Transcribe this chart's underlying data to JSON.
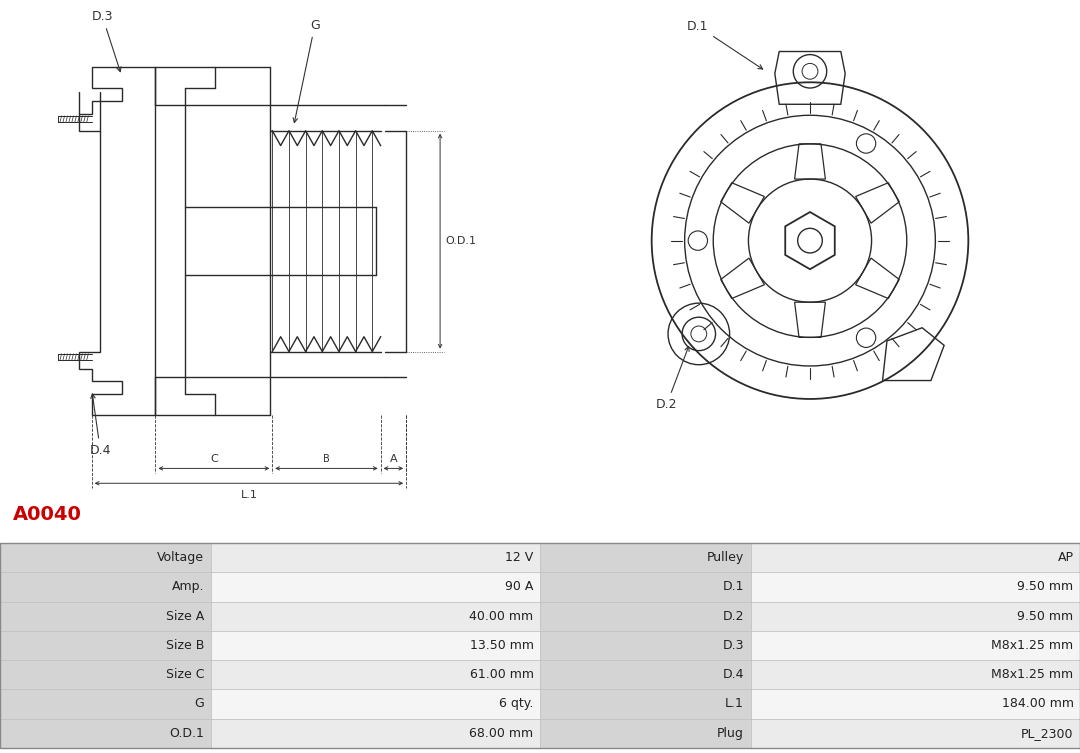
{
  "title": "A0040",
  "title_color": "#cc0000",
  "bg_color": "#ffffff",
  "table_rows": [
    [
      "Voltage",
      "12 V",
      "Pulley",
      "AP"
    ],
    [
      "Amp.",
      "90 A",
      "D.1",
      "9.50 mm"
    ],
    [
      "Size A",
      "40.00 mm",
      "D.2",
      "9.50 mm"
    ],
    [
      "Size B",
      "13.50 mm",
      "D.3",
      "M8x1.25 mm"
    ],
    [
      "Size C",
      "61.00 mm",
      "D.4",
      "M8x1.25 mm"
    ],
    [
      "G",
      "6 qty.",
      "L.1",
      "184.00 mm"
    ],
    [
      "O.D.1",
      "68.00 mm",
      "Plug",
      "PL_2300"
    ]
  ],
  "line_color": "#2a2a2a",
  "dim_color": "#333333",
  "font_size": 9,
  "title_font_size": 14
}
